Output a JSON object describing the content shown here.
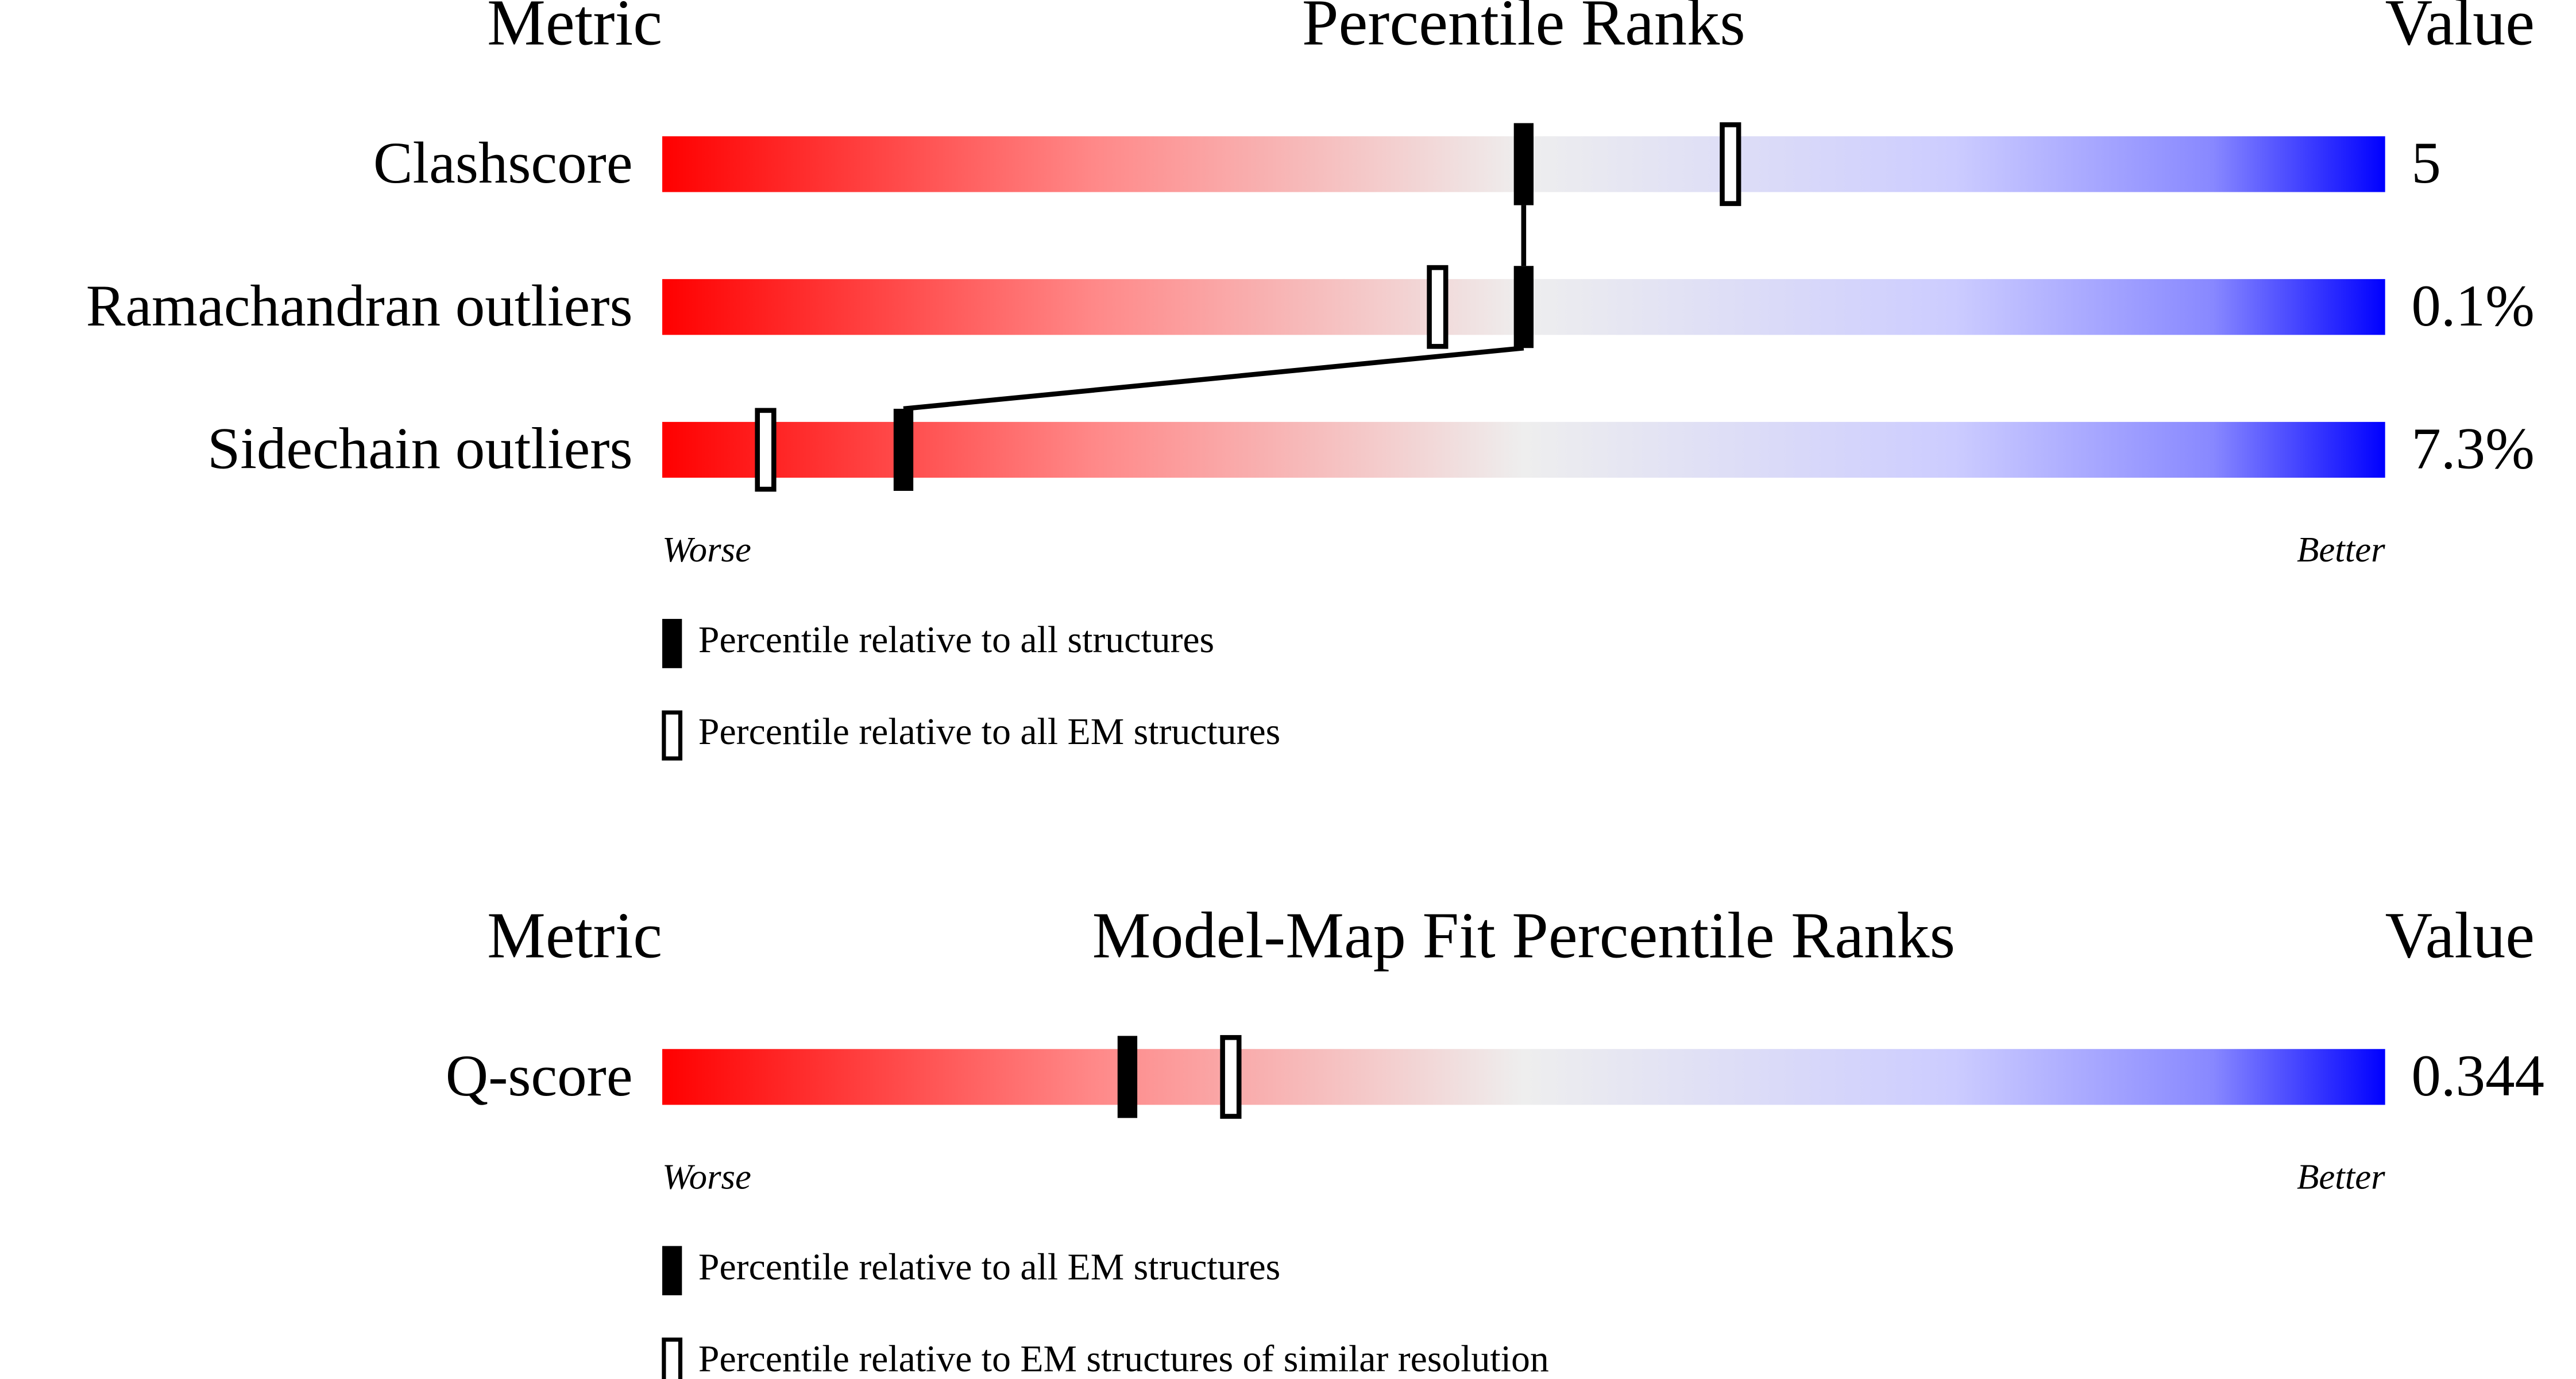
{
  "chart_data": [
    {
      "type": "percentile-slider",
      "metric_header": "Metric",
      "title": "Percentile Ranks",
      "value_header": "Value",
      "categories": [
        "Clashscore",
        "Ramachandran outliers",
        "Sidechain outliers"
      ],
      "metric_values": [
        "5",
        "0.1%",
        "7.3%"
      ],
      "xlim": [
        0,
        100
      ],
      "x_start_label": "Worse",
      "x_end_label": "Better",
      "series": [
        {
          "name": "Percentile relative to all structures",
          "color": "#000000",
          "filled": true,
          "connected": true,
          "values": [
            50,
            50,
            14
          ]
        },
        {
          "name": "Percentile relative to all EM structures",
          "color": "#000000",
          "filled": false,
          "connected": false,
          "values": [
            62,
            45,
            6
          ]
        }
      ]
    },
    {
      "type": "percentile-slider",
      "metric_header": "Metric",
      "title": "Model-Map Fit Percentile Ranks",
      "value_header": "Value",
      "categories": [
        "Q-score"
      ],
      "metric_values": [
        "0.344"
      ],
      "xlim": [
        0,
        100
      ],
      "x_start_label": "Worse",
      "x_end_label": "Better",
      "series": [
        {
          "name": "Percentile relative to all EM structures",
          "color": "#000000",
          "filled": true,
          "connected": true,
          "values": [
            27
          ]
        },
        {
          "name": "Percentile relative to EM structures of similar resolution",
          "color": "#000000",
          "filled": false,
          "connected": false,
          "values": [
            33
          ]
        }
      ]
    }
  ]
}
